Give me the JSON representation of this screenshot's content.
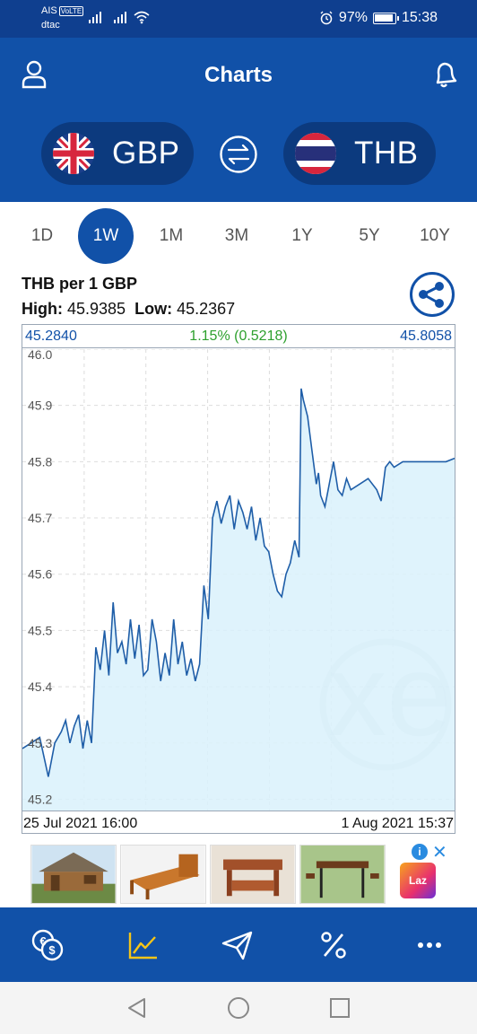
{
  "status_bar": {
    "carrier_1": "AIS",
    "volte_badge": "VoLTE",
    "carrier_2": "dtac",
    "battery": "97%",
    "time": "15:38"
  },
  "header": {
    "title": "Charts",
    "from_currency": "GBP",
    "to_currency": "THB"
  },
  "periods": {
    "items": [
      "1D",
      "1W",
      "1M",
      "3M",
      "1Y",
      "5Y",
      "10Y"
    ],
    "selected": "1W"
  },
  "chart_panel": {
    "pair_label": "THB per 1 GBP",
    "high_label": "High:",
    "high_value": "45.9385",
    "low_label": "Low:",
    "low_value": "45.2367",
    "open_value": "45.2840",
    "change_text": "1.15% (0.5218)",
    "close_value": "45.8058",
    "start_time": "25 Jul 2021 16:00",
    "end_time": "1 Aug 2021 15:37",
    "watermark": "xe"
  },
  "chart_data": {
    "type": "area",
    "title": "THB per 1 GBP",
    "ylim": [
      45.18,
      46.0
    ],
    "yticks": [
      45.2,
      45.3,
      45.4,
      45.5,
      45.6,
      45.7,
      45.8,
      45.9,
      46.0
    ],
    "x_start": "25 Jul 2021 16:00",
    "x_end": "1 Aug 2021 15:37",
    "grid": true,
    "colors": {
      "line": "#1f5ea8",
      "fill": "#d9f1fb",
      "grid": "#dddddd"
    },
    "x": [
      0,
      0.02,
      0.04,
      0.06,
      0.075,
      0.09,
      0.1,
      0.11,
      0.12,
      0.13,
      0.14,
      0.15,
      0.16,
      0.17,
      0.18,
      0.19,
      0.2,
      0.21,
      0.22,
      0.23,
      0.24,
      0.25,
      0.26,
      0.27,
      0.28,
      0.29,
      0.3,
      0.31,
      0.32,
      0.33,
      0.34,
      0.35,
      0.36,
      0.37,
      0.38,
      0.39,
      0.4,
      0.41,
      0.42,
      0.43,
      0.44,
      0.45,
      0.46,
      0.47,
      0.48,
      0.49,
      0.5,
      0.51,
      0.52,
      0.53,
      0.54,
      0.55,
      0.56,
      0.57,
      0.58,
      0.59,
      0.6,
      0.61,
      0.62,
      0.63,
      0.64,
      0.645,
      0.65,
      0.66,
      0.67,
      0.68,
      0.685,
      0.69,
      0.7,
      0.71,
      0.72,
      0.73,
      0.74,
      0.75,
      0.76,
      0.78,
      0.8,
      0.82,
      0.83,
      0.84,
      0.85,
      0.86,
      0.88,
      0.9,
      0.92,
      0.94,
      0.96,
      0.98,
      1.0
    ],
    "y": [
      45.29,
      45.3,
      45.31,
      45.24,
      45.3,
      45.32,
      45.34,
      45.3,
      45.33,
      45.35,
      45.29,
      45.34,
      45.3,
      45.47,
      45.43,
      45.5,
      45.42,
      45.55,
      45.46,
      45.48,
      45.44,
      45.52,
      45.45,
      45.51,
      45.42,
      45.43,
      45.52,
      45.48,
      45.41,
      45.46,
      45.42,
      45.52,
      45.44,
      45.48,
      45.42,
      45.45,
      45.41,
      45.44,
      45.58,
      45.52,
      45.7,
      45.73,
      45.69,
      45.72,
      45.74,
      45.68,
      45.73,
      45.71,
      45.68,
      45.72,
      45.66,
      45.7,
      45.65,
      45.64,
      45.6,
      45.57,
      45.56,
      45.6,
      45.62,
      45.66,
      45.63,
      45.93,
      45.91,
      45.88,
      45.82,
      45.76,
      45.78,
      45.74,
      45.72,
      45.76,
      45.8,
      45.75,
      45.74,
      45.77,
      45.75,
      45.76,
      45.77,
      45.75,
      45.73,
      45.79,
      45.8,
      45.79,
      45.8,
      45.8,
      45.8,
      45.8,
      45.8,
      45.8,
      45.806
    ]
  },
  "ad_strip": {
    "info_label": "i",
    "close_label": "✕",
    "brand": "Laz"
  },
  "bottom_nav": {
    "items": [
      "currency-converter",
      "charts",
      "send-money",
      "rate-alerts",
      "more"
    ],
    "active_color": "#f5c518"
  }
}
